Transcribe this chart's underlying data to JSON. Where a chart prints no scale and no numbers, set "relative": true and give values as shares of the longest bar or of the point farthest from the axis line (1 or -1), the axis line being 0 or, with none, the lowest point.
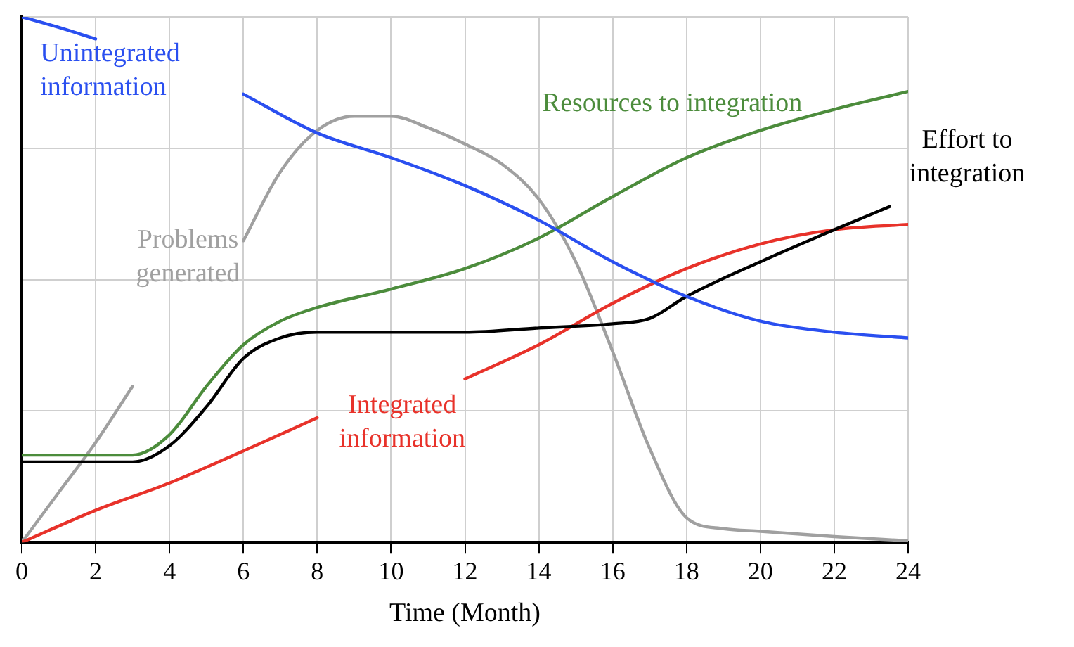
{
  "chart_data": {
    "type": "line",
    "xlabel": "Time (Month)",
    "relative": true,
    "xlim": [
      0,
      24
    ],
    "xticks": [
      0,
      2,
      4,
      6,
      8,
      10,
      12,
      14,
      16,
      18,
      20,
      22,
      24
    ],
    "grid": true,
    "legend": false,
    "marker": "none",
    "line_style": "solid",
    "series": [
      {
        "name": "Unintegrated information",
        "color": "#2a4ff0",
        "x": [
          0,
          1,
          2,
          3,
          4,
          5,
          6,
          8,
          10,
          12,
          14,
          16,
          18,
          20,
          22,
          24
        ],
        "values": [
          1.0,
          0.98,
          0.958,
          null,
          null,
          null,
          0.853,
          0.779,
          0.732,
          0.679,
          0.613,
          0.534,
          0.468,
          0.421,
          0.4,
          0.389
        ]
      },
      {
        "name": "Resources to integration",
        "color": "#4c8c3c",
        "x": [
          0,
          3,
          4,
          5,
          6,
          7,
          8,
          10,
          12,
          14,
          16,
          18,
          20,
          22,
          24
        ],
        "values": [
          0.166,
          0.166,
          0.205,
          0.297,
          0.376,
          0.421,
          0.447,
          0.482,
          0.521,
          0.579,
          0.658,
          0.732,
          0.784,
          0.824,
          0.858
        ]
      },
      {
        "name": "Effort to integration",
        "color": "#000000",
        "x": [
          0,
          3,
          4,
          5,
          6,
          7,
          8,
          10,
          12,
          14,
          16,
          17,
          18,
          20,
          22,
          23.5
        ],
        "values": [
          0.153,
          0.153,
          0.184,
          0.258,
          0.35,
          0.389,
          0.4,
          0.4,
          0.4,
          0.408,
          0.416,
          0.426,
          0.468,
          0.534,
          0.595,
          0.639
        ]
      },
      {
        "name": "Integrated information",
        "color": "#e8322a",
        "x": [
          0,
          2,
          4,
          6,
          8,
          9,
          10,
          11,
          12,
          14,
          16,
          18,
          20,
          22,
          24
        ],
        "values": [
          0,
          0.061,
          0.113,
          0.174,
          0.237,
          null,
          null,
          null,
          0.311,
          0.376,
          0.455,
          0.521,
          0.568,
          0.595,
          0.605
        ]
      },
      {
        "name": "Problems generated",
        "color": "#a0a0a0",
        "x": [
          0,
          1,
          2,
          3,
          4,
          5,
          6,
          7,
          8,
          9,
          10,
          11,
          12,
          13,
          14,
          15,
          16,
          17,
          18,
          19,
          20,
          22,
          24
        ],
        "values": [
          0,
          0.095,
          0.19,
          0.297,
          null,
          null,
          0.574,
          0.705,
          0.784,
          0.811,
          0.811,
          0.789,
          0.758,
          0.72,
          0.653,
          0.534,
          0.363,
          0.179,
          0.047,
          0.026,
          0.021,
          0.011,
          0.003
        ]
      }
    ]
  }
}
